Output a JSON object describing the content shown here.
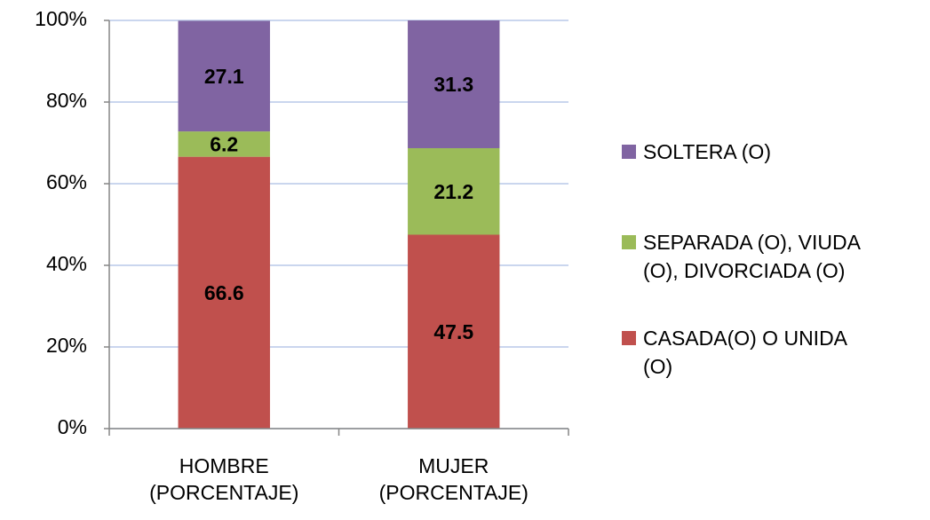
{
  "chart_data": {
    "type": "stacked_bar",
    "categories": [
      "HOMBRE (PORCENTAJE)",
      "MUJER (PORCENTAJE)"
    ],
    "series": [
      {
        "name": "CASADA(O) O UNIDA (O)",
        "color": "#c0504d",
        "values": [
          66.6,
          47.5
        ]
      },
      {
        "name": "SEPARADA (O), VIUDA (O), DIVORCIADA (O)",
        "color": "#9bbb59",
        "values": [
          6.2,
          21.2
        ]
      },
      {
        "name": "SOLTERA (O)",
        "color": "#8064a2",
        "values": [
          27.1,
          31.3
        ]
      }
    ],
    "ylim": [
      0,
      100
    ],
    "yticks": [
      {
        "value": 0,
        "label": "0%"
      },
      {
        "value": 20,
        "label": "20%"
      },
      {
        "value": 40,
        "label": "40%"
      },
      {
        "value": 60,
        "label": "60%"
      },
      {
        "value": 80,
        "label": "80%"
      },
      {
        "value": 100,
        "label": "100%"
      }
    ],
    "grid": true,
    "legend": "right"
  }
}
